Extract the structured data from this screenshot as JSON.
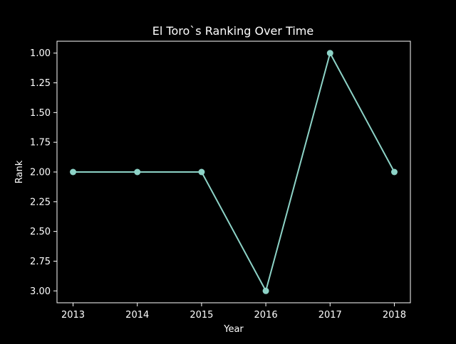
{
  "chart_data": {
    "type": "line",
    "title": "El Toro`s Ranking Over Time",
    "xlabel": "Year",
    "ylabel": "Rank",
    "x": [
      2013,
      2014,
      2015,
      2016,
      2017,
      2018
    ],
    "series": [
      {
        "values": [
          2,
          2,
          2,
          3,
          1,
          2
        ],
        "color": "#8dd3c7",
        "marker": "circle"
      }
    ],
    "x_ticks": [
      "2013",
      "2014",
      "2015",
      "2016",
      "2017",
      "2018"
    ],
    "y_ticks": [
      "1.00",
      "1.25",
      "1.50",
      "1.75",
      "2.00",
      "2.25",
      "2.50",
      "2.75",
      "3.00"
    ],
    "ylim": [
      3.1,
      0.9
    ],
    "y_inverted": true,
    "grid": false,
    "background": "#000000",
    "axes_color": "#ffffff"
  }
}
